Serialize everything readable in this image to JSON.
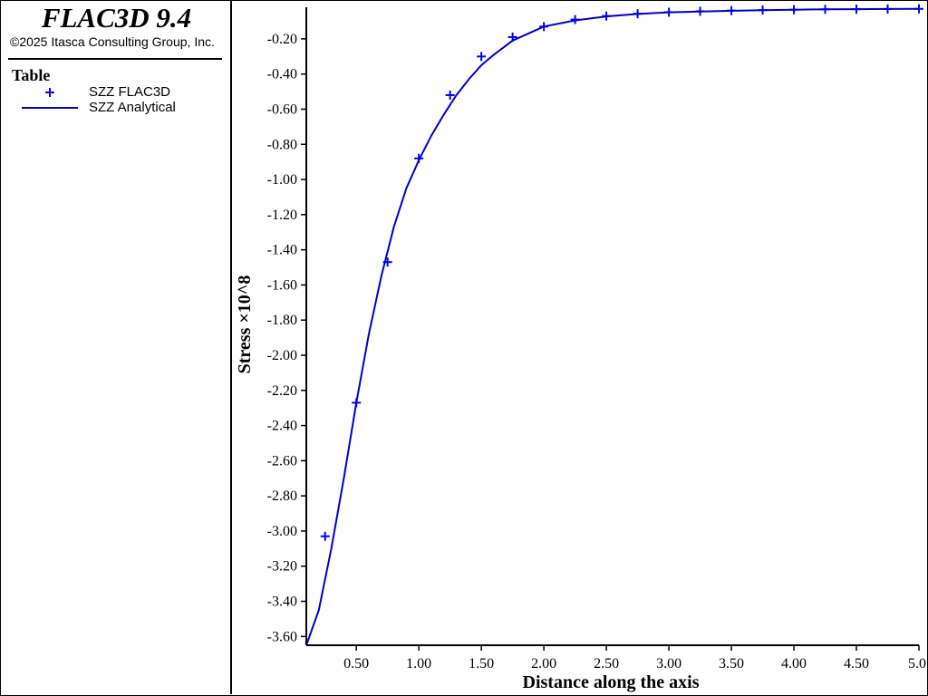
{
  "header": {
    "app_title": "FLAC3D 9.4",
    "copyright": "©2025 Itasca Consulting Group, Inc."
  },
  "legend": {
    "heading": "Table",
    "items": [
      {
        "label": "SZZ FLAC3D",
        "symbol": "plus-marker",
        "color": "#0000ff"
      },
      {
        "label": "SZZ Analytical",
        "symbol": "line",
        "color": "#0000cc"
      }
    ]
  },
  "chart_data": {
    "type": "line",
    "xlabel": "Distance along the axis",
    "ylabel": "Stress ×10^8",
    "xlim": [
      0.1,
      5.0
    ],
    "ylim": [
      -3.65,
      -0.02
    ],
    "x_ticks": [
      "0.50",
      "1.00",
      "1.50",
      "2.00",
      "2.50",
      "3.00",
      "3.50",
      "4.00",
      "4.50",
      "5.0"
    ],
    "x_tick_values": [
      0.5,
      1.0,
      1.5,
      2.0,
      2.5,
      3.0,
      3.5,
      4.0,
      4.5,
      5.0
    ],
    "y_ticks": [
      "-0.20",
      "-0.40",
      "-0.60",
      "-0.80",
      "-1.00",
      "-1.20",
      "-1.40",
      "-1.60",
      "-1.80",
      "-2.00",
      "-2.20",
      "-2.40",
      "-2.60",
      "-2.80",
      "-3.00",
      "-3.20",
      "-3.40",
      "-3.60"
    ],
    "y_tick_values": [
      -0.2,
      -0.4,
      -0.6,
      -0.8,
      -1.0,
      -1.2,
      -1.4,
      -1.6,
      -1.8,
      -2.0,
      -2.2,
      -2.4,
      -2.6,
      -2.8,
      -3.0,
      -3.2,
      -3.4,
      -3.6
    ],
    "grid": false,
    "series": [
      {
        "name": "SZZ FLAC3D",
        "style": "markers",
        "color": "#0000ff",
        "x": [
          0.25,
          0.5,
          0.75,
          1.0,
          1.25,
          1.5,
          1.75,
          2.0,
          2.25,
          2.5,
          2.75,
          3.0,
          3.25,
          3.5,
          3.75,
          4.0,
          4.25,
          4.5,
          4.75,
          5.0
        ],
        "y": [
          -3.03,
          -2.27,
          -1.47,
          -0.88,
          -0.52,
          -0.3,
          -0.19,
          -0.13,
          -0.09,
          -0.07,
          -0.057,
          -0.048,
          -0.043,
          -0.039,
          -0.036,
          -0.034,
          -0.032,
          -0.031,
          -0.03,
          -0.029
        ]
      },
      {
        "name": "SZZ Analytical",
        "style": "line",
        "color": "#0000cc",
        "x": [
          0.1,
          0.2,
          0.3,
          0.4,
          0.5,
          0.6,
          0.7,
          0.8,
          0.9,
          1.0,
          1.1,
          1.2,
          1.3,
          1.4,
          1.5,
          1.6,
          1.75,
          2.0,
          2.25,
          2.5,
          2.75,
          3.0,
          3.25,
          3.5,
          3.75,
          4.0,
          4.25,
          4.5,
          4.75,
          5.0
        ],
        "y": [
          -3.65,
          -3.45,
          -3.1,
          -2.7,
          -2.27,
          -1.88,
          -1.55,
          -1.27,
          -1.05,
          -0.89,
          -0.75,
          -0.63,
          -0.52,
          -0.43,
          -0.35,
          -0.29,
          -0.21,
          -0.13,
          -0.095,
          -0.072,
          -0.058,
          -0.049,
          -0.044,
          -0.04,
          -0.037,
          -0.034,
          -0.032,
          -0.031,
          -0.03,
          -0.029
        ]
      }
    ]
  }
}
